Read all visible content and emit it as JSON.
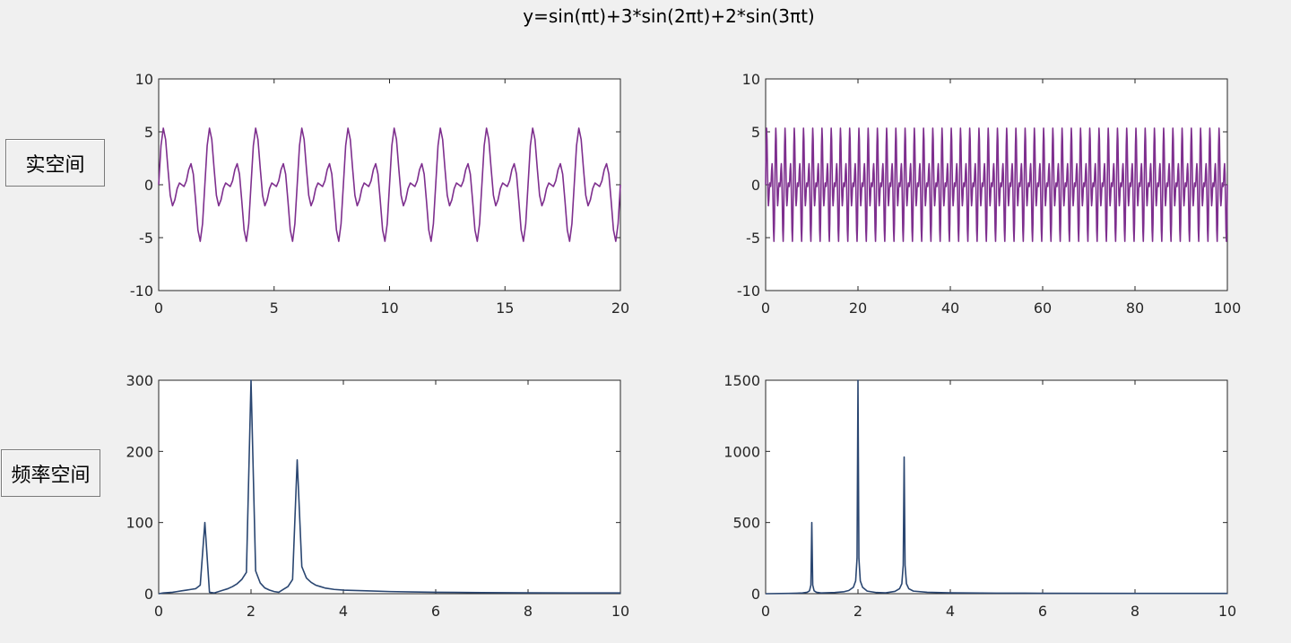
{
  "figure_title": "y=sin(πt)+3*sin(2πt)+2*sin(3πt)",
  "panel_labels": {
    "real_space": "实空间",
    "frequency_space": "频率空间"
  },
  "colors": {
    "time_series": "#7e2f8e",
    "spectrum_series": "#2a4671",
    "figure_background": "#f0f0f0",
    "axes_background": "#ffffff"
  },
  "chart_data": [
    {
      "type": "line",
      "id": "time-short",
      "title": "",
      "xlabel": "",
      "ylabel": "",
      "xlim": [
        0,
        20
      ],
      "ylim": [
        -10,
        10
      ],
      "xticks": [
        0,
        5,
        10,
        15,
        20
      ],
      "yticks": [
        -10,
        -5,
        0,
        5,
        10
      ],
      "grid": false,
      "function": "sin(pi*t)+3*sin(2*pi*t)+2*sin(3*pi*t)",
      "sample_step": 0.1,
      "peak_values": {
        "max": 5.3,
        "min": -5.3,
        "secondary_max": 1.9,
        "secondary_min": -1.9
      },
      "period": 2
    },
    {
      "type": "line",
      "id": "time-long",
      "title": "",
      "xlabel": "",
      "ylabel": "",
      "xlim": [
        0,
        100
      ],
      "ylim": [
        -10,
        10
      ],
      "xticks": [
        0,
        20,
        40,
        60,
        80,
        100
      ],
      "yticks": [
        -10,
        -5,
        0,
        5,
        10
      ],
      "grid": false,
      "function": "sin(pi*t)+3*sin(2*pi*t)+2*sin(3*pi*t)",
      "sample_step": 0.1,
      "peak_values": {
        "max": 5.3,
        "min": -5.3,
        "secondary_max": 1.9,
        "secondary_min": -1.9
      },
      "period": 2
    },
    {
      "type": "line",
      "id": "spectrum-short",
      "title": "",
      "xlabel": "",
      "ylabel": "",
      "xlim": [
        0,
        10
      ],
      "ylim": [
        0,
        300
      ],
      "xticks": [
        0,
        2,
        4,
        6,
        8,
        10
      ],
      "yticks": [
        0,
        100,
        200,
        300
      ],
      "grid": false,
      "x": [
        0,
        0.1,
        0.2,
        0.3,
        0.4,
        0.5,
        0.6,
        0.7,
        0.8,
        0.9,
        1.0,
        1.1,
        1.2,
        1.3,
        1.4,
        1.5,
        1.6,
        1.7,
        1.8,
        1.9,
        2.0,
        2.1,
        2.2,
        2.3,
        2.4,
        2.5,
        2.6,
        2.7,
        2.8,
        2.9,
        3.0,
        3.1,
        3.2,
        3.3,
        3.4,
        3.5,
        3.6,
        3.8,
        4.0,
        4.5,
        5.0,
        5.5,
        6.0,
        7.0,
        8.0,
        9.0,
        10.0
      ],
      "values": [
        0,
        1,
        1.5,
        2,
        3,
        4,
        5,
        6,
        7,
        12,
        100,
        2,
        1,
        3,
        5,
        7,
        10,
        14,
        20,
        30,
        300,
        32,
        15,
        8,
        5,
        3,
        2,
        6,
        10,
        20,
        188,
        38,
        22,
        16,
        12,
        10,
        8,
        6,
        5,
        4,
        3,
        2.5,
        2,
        1.5,
        1.2,
        1,
        1
      ]
    },
    {
      "type": "line",
      "id": "spectrum-long",
      "title": "",
      "xlabel": "",
      "ylabel": "",
      "xlim": [
        0,
        10
      ],
      "ylim": [
        0,
        1500
      ],
      "xticks": [
        0,
        2,
        4,
        6,
        8,
        10
      ],
      "yticks": [
        0,
        500,
        1000,
        1500
      ],
      "grid": false,
      "x": [
        0,
        0.5,
        0.8,
        0.9,
        0.95,
        0.98,
        1.0,
        1.02,
        1.05,
        1.1,
        1.2,
        1.5,
        1.7,
        1.8,
        1.9,
        1.95,
        1.98,
        2.0,
        2.02,
        2.05,
        2.1,
        2.2,
        2.4,
        2.6,
        2.8,
        2.9,
        2.95,
        2.98,
        3.0,
        3.02,
        3.05,
        3.1,
        3.2,
        3.5,
        4.0,
        5.0,
        6.0,
        8.0,
        10.0
      ],
      "values": [
        0,
        2,
        5,
        10,
        20,
        60,
        500,
        60,
        20,
        10,
        5,
        8,
        14,
        22,
        45,
        90,
        250,
        1500,
        250,
        90,
        45,
        18,
        8,
        6,
        16,
        35,
        70,
        200,
        960,
        200,
        70,
        35,
        18,
        10,
        6,
        4,
        3,
        2,
        2
      ]
    }
  ]
}
